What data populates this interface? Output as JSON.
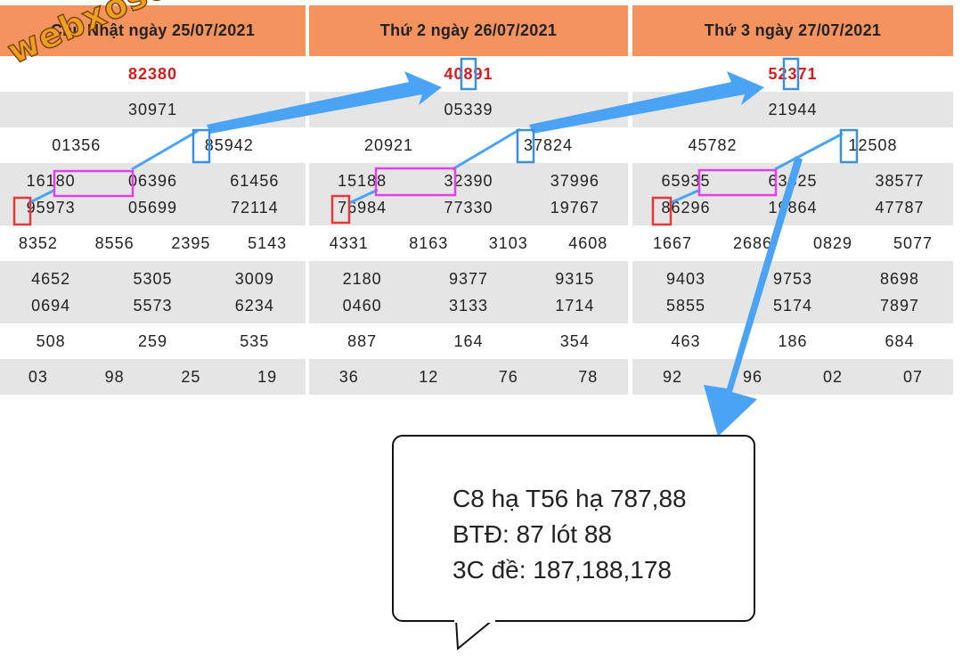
{
  "watermark": "webxoso.net",
  "days": [
    {
      "header": "Chủ Nhật ngày 25/07/2021",
      "special": "82380",
      "g1": "30971",
      "g2": [
        "01356",
        "85942"
      ],
      "g3a": [
        "16180",
        "06396",
        "61456"
      ],
      "g3b": [
        "95973",
        "05699",
        "72114"
      ],
      "g4": [
        "8352",
        "8556",
        "2395",
        "5143"
      ],
      "g5a": [
        "4652",
        "5305",
        "3009"
      ],
      "g5b": [
        "0694",
        "5573",
        "6234"
      ],
      "g6": [
        "508",
        "259",
        "535"
      ],
      "g7": [
        "03",
        "98",
        "25",
        "19"
      ]
    },
    {
      "header": "Thứ 2 ngày 26/07/2021",
      "special": "40891",
      "g1": "05339",
      "g2": [
        "20921",
        "37824"
      ],
      "g3a": [
        "15188",
        "32390",
        "37996"
      ],
      "g3b": [
        "76984",
        "77330",
        "19767"
      ],
      "g4": [
        "4331",
        "8163",
        "3103",
        "4608"
      ],
      "g5a": [
        "2180",
        "9377",
        "9315"
      ],
      "g5b": [
        "0460",
        "3133",
        "1714"
      ],
      "g6": [
        "887",
        "164",
        "354"
      ],
      "g7": [
        "36",
        "12",
        "76",
        "78"
      ]
    },
    {
      "header": "Thứ 3 ngày 27/07/2021",
      "special": "52371",
      "g1": "21944",
      "g2": [
        "45782",
        "12508"
      ],
      "g3a": [
        "65935",
        "63625",
        "38577"
      ],
      "g3b": [
        "86296",
        "19864",
        "47787"
      ],
      "g4": [
        "1667",
        "2686",
        "0829",
        "5077"
      ],
      "g5a": [
        "9403",
        "9753",
        "8698"
      ],
      "g5b": [
        "5855",
        "5174",
        "7897"
      ],
      "g6": [
        "463",
        "186",
        "684"
      ],
      "g7": [
        "92",
        "96",
        "02",
        "07"
      ]
    }
  ],
  "bubble": {
    "line1": "C8 hạ T56 hạ 787,88",
    "line2": "BTĐ: 87 lót 88",
    "line3": "3C đề: 187,188,178"
  },
  "colors": {
    "header_bg": "#f4935e",
    "special_text": "#d41c1c",
    "arrow": "#4aa3f5",
    "highlight_blue": "#3b8fe0",
    "highlight_magenta": "#e040e8",
    "highlight_red": "#e03a3a"
  }
}
